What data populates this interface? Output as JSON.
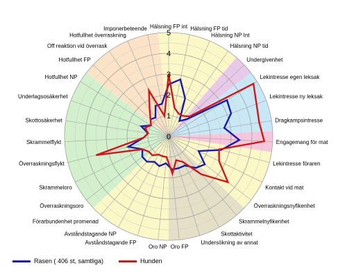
{
  "chart_data": {
    "type": "radar",
    "rmin": 0,
    "rmax": 5,
    "ticks": [
      "0",
      "1",
      "2",
      "3",
      "4",
      "5"
    ],
    "categories": [
      "Hälsning FP int",
      "Hälsning FP tid",
      "Hälsning NP Int",
      "Hälsning NP tid",
      "Undergivenhet",
      "Lekintresse egen leksak",
      "Lekintresse ny leksak",
      "Dragkampsintresse",
      "Engagemang för mat",
      "Lekintresse föraren",
      "Kontakt vid mat",
      "Överraskningsnyfikenhet",
      "Skrammelnyfikenhet",
      "Skottaktivitet",
      "Undersökning av annat",
      "Oro FP",
      "Oro NP",
      "Avståndstagande FP",
      "Avståndstagande NP",
      "Förarbundenhet promenad",
      "Överraskningsoro",
      "Skrammeloro",
      "Överraskningsflykt",
      "Skrammelflykt",
      "Skottosäkerhet",
      "Underlagsosäkerhet",
      "Hotfullhet NP",
      "Hotfullhet FP",
      "Off reaktion vid överrask",
      "Hotfullhet överraskning",
      "Imponerbeteende"
    ],
    "series": [
      {
        "name": "Rasen ( 406 st, samtliga)",
        "color": "#1a1aa8",
        "values": [
          2.5,
          2.8,
          2.0,
          0.9,
          1.2,
          3.3,
          3.2,
          2.7,
          3.4,
          2.6,
          1.6,
          2.2,
          2.0,
          1.6,
          1.6,
          1.6,
          1.3,
          1.5,
          1.4,
          1.6,
          1.6,
          1.4,
          2.0,
          1.2,
          1.0,
          1.4,
          1.0,
          1.2,
          1.1,
          1.6,
          1.6
        ]
      },
      {
        "name": "Hunden",
        "color": "#cc1a1a",
        "values": [
          3.0,
          1.4,
          1.2,
          1.2,
          1.4,
          4.8,
          4.5,
          4.4,
          4.6,
          2.5,
          2.7,
          3.6,
          2.4,
          1.4,
          1.2,
          1.8,
          1.0,
          1.0,
          1.0,
          1.2,
          1.2,
          1.4,
          3.6,
          1.2,
          1.0,
          1.2,
          1.0,
          1.2,
          1.6,
          2.4,
          1.0
        ]
      }
    ],
    "bands": [
      {
        "from": 26.5,
        "to": 31.5,
        "color": "#fbe3c8"
      },
      {
        "from": 19.5,
        "to": 26.5,
        "color": "#d3f0cc"
      },
      {
        "from": 11.5,
        "to": 15.5,
        "color": "#e6dfc8"
      },
      {
        "from": 15.5,
        "to": 19.5,
        "color": "#fbf7c6"
      },
      {
        "from": -0.5,
        "to": 3.5,
        "color": "#fbf7c6"
      },
      {
        "from": 3.5,
        "to": 4.5,
        "color": "#e9c9ea"
      },
      {
        "from": 4.5,
        "to": 7.5,
        "color": "#c8e8f6"
      },
      {
        "from": 7.5,
        "to": 8.5,
        "color": "#f6c6dc"
      },
      {
        "from": 8.5,
        "to": 11.5,
        "color": "#fbf7c6"
      }
    ],
    "legend_position": "bottom-left",
    "grid": true
  }
}
